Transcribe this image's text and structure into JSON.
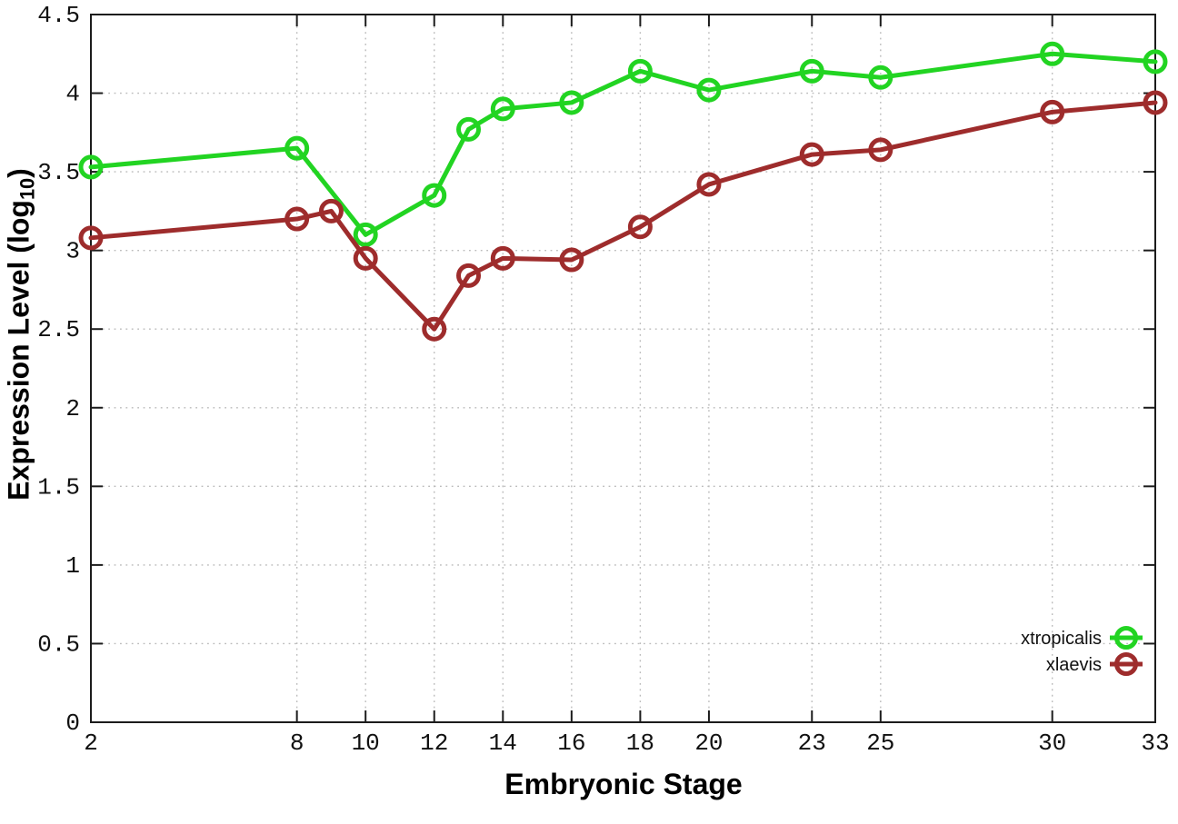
{
  "figure": {
    "background": "#ffffff",
    "title": ""
  },
  "labels": {
    "ylabel_main": "Expression Level (log",
    "ylabel_sub": "10",
    "ylabel_close": ")",
    "xlabel": "Embryonic Stage"
  },
  "chart_data": {
    "type": "line",
    "title": "",
    "xlabel": "Embryonic Stage",
    "ylabel": "Expression Level (log10)",
    "xlim": [
      2,
      33
    ],
    "ylim": [
      0,
      4.5
    ],
    "x_ticks": [
      2,
      8,
      10,
      12,
      14,
      16,
      18,
      20,
      23,
      25,
      30,
      33
    ],
    "y_ticks": [
      0,
      0.5,
      1,
      1.5,
      2,
      2.5,
      3,
      3.5,
      4,
      4.5
    ],
    "grid": true,
    "grid_style": "dotted",
    "legend_position": "bottom-right",
    "marker": "open-circle",
    "series": [
      {
        "name": "xtropicalis",
        "color": "#22d422",
        "points": [
          [
            2,
            3.53
          ],
          [
            8,
            3.65
          ],
          [
            10,
            3.1
          ],
          [
            12,
            3.35
          ],
          [
            13,
            3.77
          ],
          [
            14,
            3.9
          ],
          [
            16,
            3.94
          ],
          [
            18,
            4.14
          ],
          [
            20,
            4.02
          ],
          [
            23,
            4.14
          ],
          [
            25,
            4.1
          ],
          [
            30,
            4.25
          ],
          [
            33,
            4.2
          ]
        ]
      },
      {
        "name": "xlaevis",
        "color": "#9e2c2c",
        "points": [
          [
            2,
            3.08
          ],
          [
            8,
            3.2
          ],
          [
            9,
            3.25
          ],
          [
            10,
            2.95
          ],
          [
            12,
            2.5
          ],
          [
            13,
            2.84
          ],
          [
            14,
            2.95
          ],
          [
            16,
            2.94
          ],
          [
            18,
            3.15
          ],
          [
            20,
            3.42
          ],
          [
            23,
            3.61
          ],
          [
            25,
            3.64
          ],
          [
            30,
            3.88
          ],
          [
            33,
            3.94
          ]
        ]
      }
    ]
  },
  "colors": {
    "grid": "#bbbbbb",
    "axis": "#1c1c1c",
    "tick_text": "#111111",
    "legend_text": "#111111"
  }
}
